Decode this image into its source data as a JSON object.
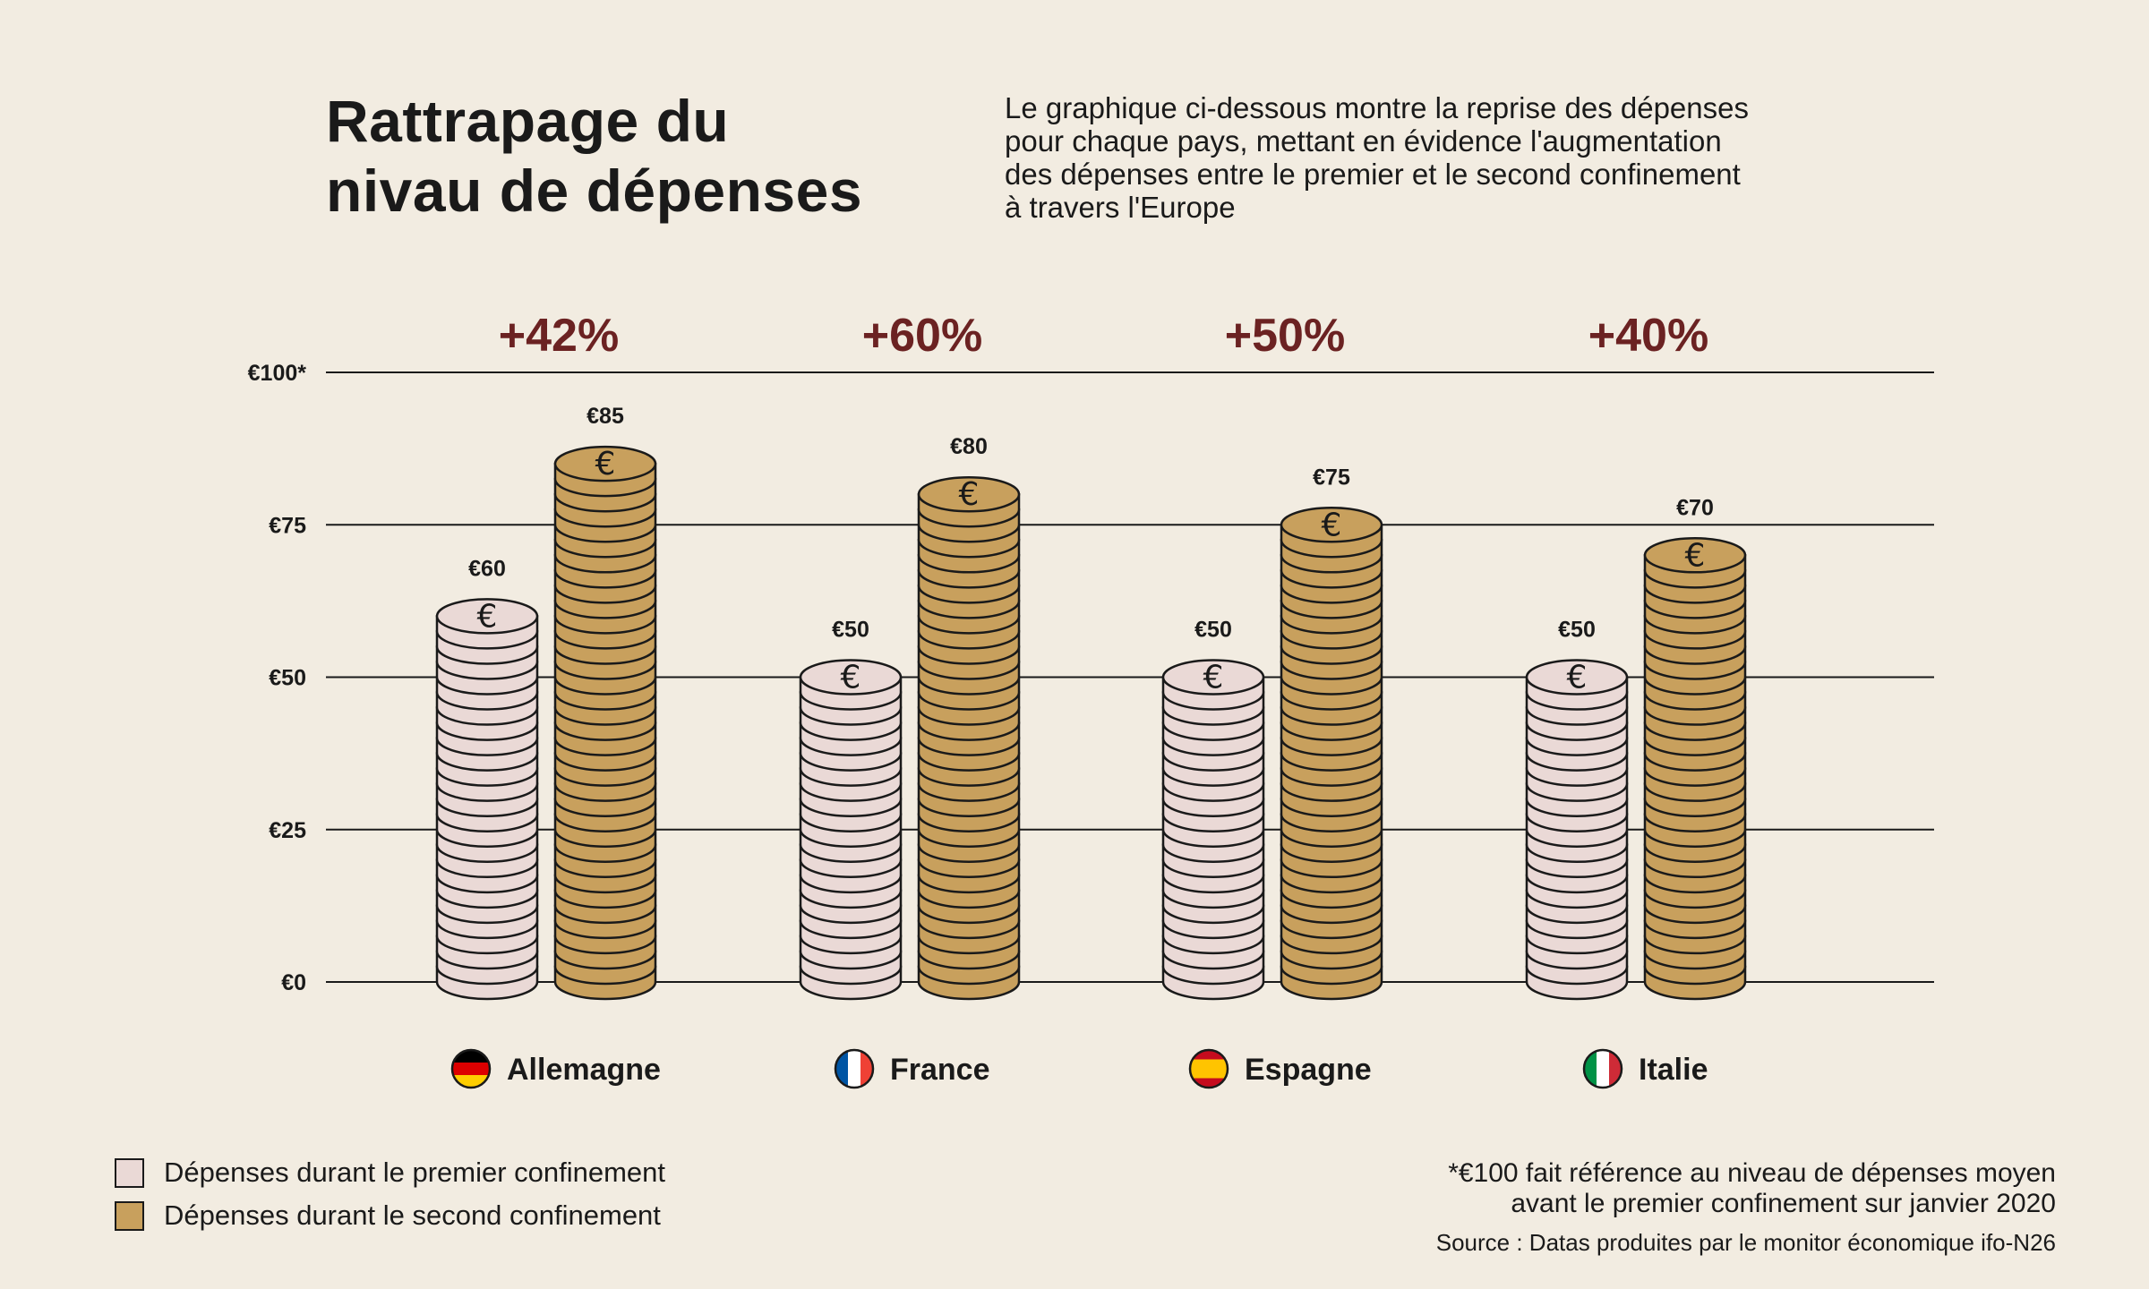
{
  "title": {
    "line1": "Rattrapage du",
    "line2": "nivau de dépenses"
  },
  "subtitle": {
    "line1": "Le graphique ci-dessous montre la reprise des dépenses",
    "line2": "pour chaque pays, mettant en évidence l'augmentation",
    "line3": "des dépenses entre le premier et le second confinement",
    "line4": "à travers l'Europe"
  },
  "colors": {
    "first": "#ead9d6",
    "second": "#c8a05d",
    "increase": "#6b2222",
    "ink": "#1a1a1a"
  },
  "chart_data": {
    "type": "bar",
    "title": "Rattrapage du nivau de dépenses",
    "ylim": [
      0,
      100
    ],
    "ytick_labels": [
      "€0",
      "€25",
      "€50",
      "€75",
      "€100*"
    ],
    "yticks": [
      0,
      25,
      50,
      75,
      100
    ],
    "categories": [
      "Allemagne",
      "France",
      "Espagne",
      "Italie"
    ],
    "flags": [
      "flag-germany-icon",
      "flag-france-icon",
      "flag-spain-icon",
      "flag-italy-icon"
    ],
    "series": [
      {
        "name": "Dépenses durant le premier confinement",
        "values": [
          60,
          50,
          50,
          50
        ],
        "labels": [
          "€60",
          "€50",
          "€50",
          "€50"
        ]
      },
      {
        "name": "Dépenses durant le second confinement",
        "values": [
          85,
          80,
          75,
          70
        ],
        "labels": [
          "€85",
          "€80",
          "€75",
          "€70"
        ]
      }
    ],
    "increases": [
      "+42%",
      "+60%",
      "+50%",
      "+40%"
    ],
    "legend_position": "bottom-left"
  },
  "legend": {
    "first_label": "Dépenses durant le premier confinement",
    "second_label": "Dépenses durant le second confinement"
  },
  "footnote": {
    "line1": "*€100 fait référence au niveau de dépenses moyen",
    "line2": "avant le premier confinement sur janvier 2020"
  },
  "source": "Source : Datas produites par le monitor économique ifo-N26"
}
